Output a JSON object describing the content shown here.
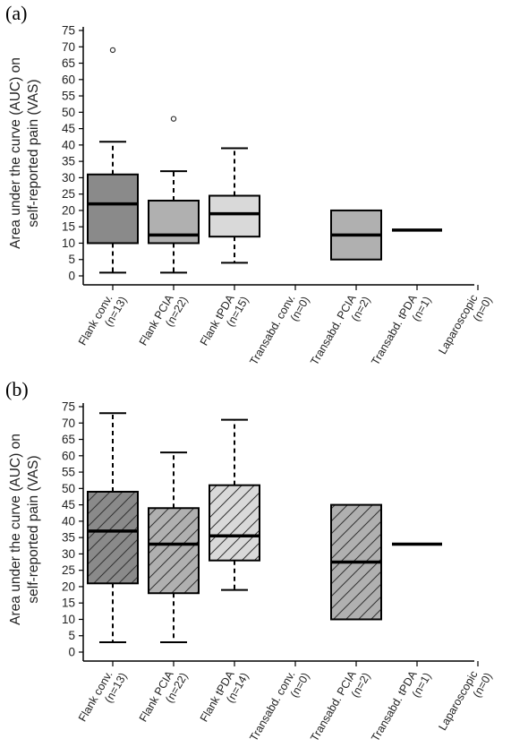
{
  "chart_data": [
    {
      "type": "box",
      "panel_label": "(a)",
      "ylabel_line1": "Area under the curve (AUC) on",
      "ylabel_line2": "self-reported pain (VAS)",
      "ylim": [
        0,
        75
      ],
      "yticks": [
        0,
        5,
        10,
        15,
        20,
        25,
        30,
        35,
        40,
        45,
        50,
        55,
        60,
        65,
        70,
        75
      ],
      "hatched": false,
      "categories": [
        {
          "line1": "Flank conv.",
          "line2": "(n=13)"
        },
        {
          "line1": "Flank PCIA",
          "line2": "(n=22)"
        },
        {
          "line1": "Flank tPDA",
          "line2": "(n=15)"
        },
        {
          "line1": "Transabd. conv.",
          "line2": "(n=0)"
        },
        {
          "line1": "Transabd. PCIA",
          "line2": "(n=2)"
        },
        {
          "line1": "Transabd. tPDA",
          "line2": "(n=1)"
        },
        {
          "line1": "Laparoscopic",
          "line2": "(n=0)"
        }
      ],
      "boxes": [
        {
          "min": 1,
          "q1": 10,
          "median": 22,
          "q3": 31,
          "max": 41,
          "outliers": [
            69
          ],
          "fill": "#8a8a8a"
        },
        {
          "min": 1,
          "q1": 10,
          "median": 12.5,
          "q3": 23,
          "max": 32,
          "outliers": [
            48
          ],
          "fill": "#b0b0b0"
        },
        {
          "min": 4,
          "q1": 12,
          "median": 19,
          "q3": 24.5,
          "max": 39,
          "outliers": [],
          "fill": "#d9d9d9"
        },
        null,
        {
          "min": 5,
          "q1": 5,
          "median": 12.5,
          "q3": 20,
          "max": 20,
          "outliers": [],
          "fill": "#b0b0b0"
        },
        {
          "single": 14
        },
        null
      ]
    },
    {
      "type": "box",
      "panel_label": "(b)",
      "ylabel_line1": "Area under the curve (AUC) on",
      "ylabel_line2": "self-reported pain (VAS)",
      "ylim": [
        0,
        75
      ],
      "yticks": [
        0,
        5,
        10,
        15,
        20,
        25,
        30,
        35,
        40,
        45,
        50,
        55,
        60,
        65,
        70,
        75
      ],
      "hatched": true,
      "categories": [
        {
          "line1": "Flank conv.",
          "line2": "(n=13)"
        },
        {
          "line1": "Flank PCIA",
          "line2": "(n=22)"
        },
        {
          "line1": "Flank tPDA",
          "line2": "(n=14)"
        },
        {
          "line1": "Transabd. conv.",
          "line2": "(n=0)"
        },
        {
          "line1": "Transabd. PCIA",
          "line2": "(n=2)"
        },
        {
          "line1": "Transabd. tPDA",
          "line2": "(n=1)"
        },
        {
          "line1": "Laparoscopic",
          "line2": "(n=0)"
        }
      ],
      "boxes": [
        {
          "min": 3,
          "q1": 21,
          "median": 37,
          "q3": 49,
          "max": 73,
          "outliers": [],
          "fill": "#8a8a8a"
        },
        {
          "min": 3,
          "q1": 18,
          "median": 33,
          "q3": 44,
          "max": 61,
          "outliers": [],
          "fill": "#b0b0b0"
        },
        {
          "min": 19,
          "q1": 28,
          "median": 35.5,
          "q3": 51,
          "max": 71,
          "outliers": [],
          "fill": "#d9d9d9"
        },
        null,
        {
          "min": 10,
          "q1": 10,
          "median": 27.5,
          "q3": 45,
          "max": 45,
          "outliers": [],
          "fill": "#b0b0b0"
        },
        {
          "single": 33
        },
        null
      ]
    }
  ]
}
